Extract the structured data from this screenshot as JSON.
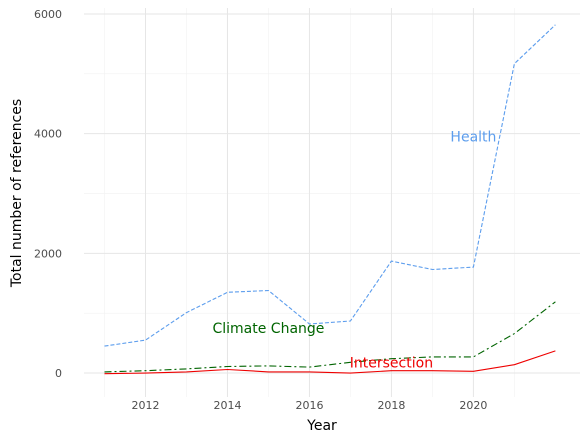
{
  "chart_data": {
    "type": "line",
    "xlabel": "Year",
    "ylabel": "Total number of references",
    "xlim": [
      2010.5,
      2022.6
    ],
    "ylim": [
      -400,
      6100
    ],
    "x_ticks": [
      2012,
      2014,
      2016,
      2018,
      2020
    ],
    "y_ticks": [
      0,
      2000,
      4000,
      6000
    ],
    "grid": true,
    "legend": "none",
    "x": [
      2011,
      2012,
      2013,
      2014,
      2015,
      2016,
      2017,
      2018,
      2019,
      2020,
      2021,
      2022
    ],
    "series": [
      {
        "name": "Health",
        "values": [
          450,
          550,
          1010,
          1350,
          1380,
          820,
          870,
          1870,
          1730,
          1770,
          5170,
          5820
        ],
        "color": "#5c9ded",
        "dash": "dashed",
        "label_position": [
          2020,
          3950
        ]
      },
      {
        "name": "Climate Change",
        "values": [
          20,
          40,
          70,
          110,
          120,
          100,
          180,
          240,
          270,
          270,
          660,
          1190
        ],
        "color": "#006400",
        "dash": "dashdot",
        "label_position": [
          2015,
          750
        ]
      },
      {
        "name": "Intersection",
        "values": [
          -10,
          0,
          20,
          60,
          20,
          20,
          0,
          40,
          40,
          30,
          140,
          370
        ],
        "color": "#ee0000",
        "dash": "solid",
        "label_position": [
          2018,
          180
        ]
      }
    ]
  }
}
